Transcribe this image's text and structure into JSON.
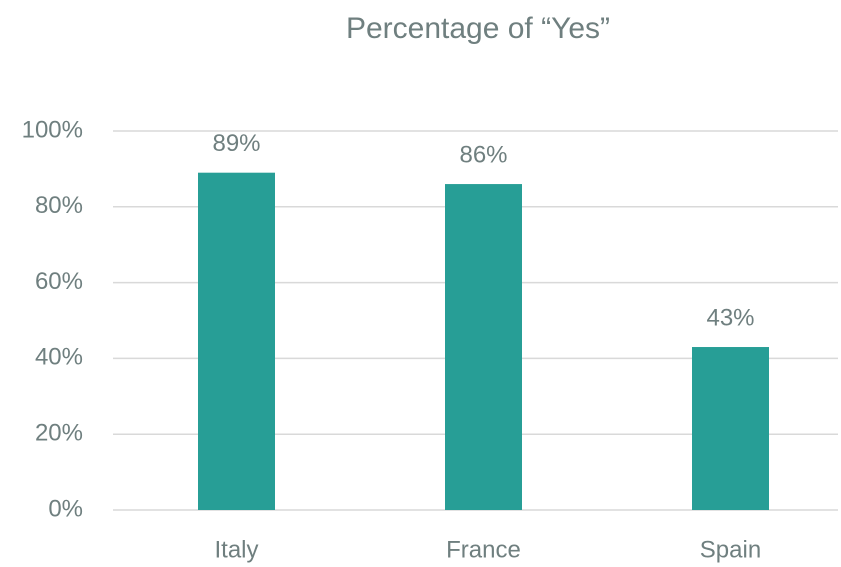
{
  "chart_data": {
    "type": "bar",
    "title": "Percentage of “Yes”",
    "categories": [
      "Italy",
      "France",
      "Spain"
    ],
    "values": [
      89,
      86,
      43
    ],
    "value_labels": [
      "89%",
      "86%",
      "43%"
    ],
    "color": "#279e96",
    "ylim": [
      0,
      100
    ],
    "yticks": [
      {
        "value": 0,
        "label": "0%"
      },
      {
        "value": 20,
        "label": "20%"
      },
      {
        "value": 40,
        "label": "40%"
      },
      {
        "value": 60,
        "label": "60%"
      },
      {
        "value": 80,
        "label": "80%"
      },
      {
        "value": 100,
        "label": "100%"
      }
    ],
    "grid": true
  }
}
